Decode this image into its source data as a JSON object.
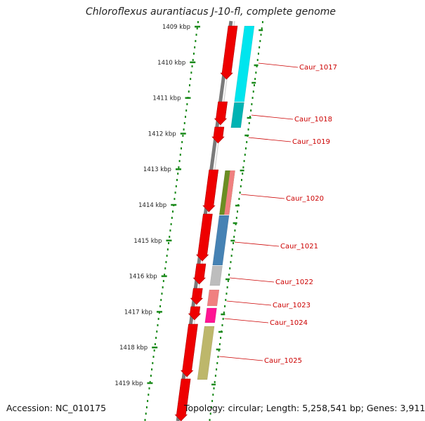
{
  "title": "Chloroflexus aurantiacus J-10-fl, complete genome",
  "footer": {
    "accession": "Accession: NC_010175",
    "topology": "Topology: circular; Length: 5,258,541 bp; Genes: 3,911"
  },
  "scale": {
    "unit": "kbp",
    "ticks": [
      "1409 kbp",
      "1410 kbp",
      "1411 kbp",
      "1412 kbp",
      "1413 kbp",
      "1414 kbp",
      "1415 kbp",
      "1416 kbp",
      "1417 kbp",
      "1418 kbp",
      "1419 kbp"
    ]
  },
  "colors": {
    "backbone": "#7a7a7a",
    "scale_marks": "#1a8a1a",
    "strand_gene": "#ee0000",
    "label": "#cc0000",
    "label_line": "#cc0000"
  },
  "genes": [
    {
      "label": "Caur_1017",
      "color": "#00e5ee"
    },
    {
      "label": "Caur_1018",
      "color": "#00b3b3"
    },
    {
      "label": "Caur_1019",
      "color": null
    },
    {
      "label": "Caur_1020",
      "color": "#6b8e23"
    },
    {
      "label": "Caur_1021",
      "color": "#4682b4"
    },
    {
      "label": "Caur_1022",
      "color": "#bdbdbd"
    },
    {
      "label": "Caur_1023",
      "color": "#f08080"
    },
    {
      "label": "Caur_1024",
      "color": "#ff1493"
    },
    {
      "label": "Caur_1025",
      "color": "#bdb76b"
    }
  ],
  "extra_feature_colors": {
    "caur_1020_second_band": "#f08080"
  }
}
